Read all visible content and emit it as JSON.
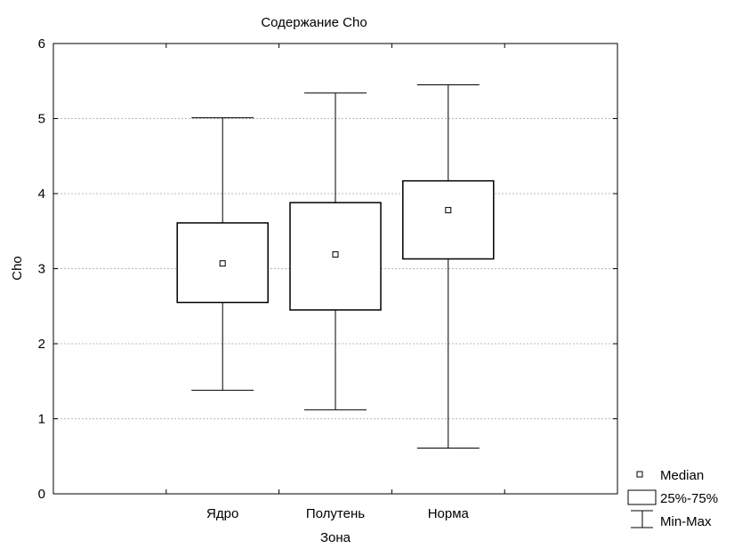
{
  "chart_data": {
    "type": "boxplot",
    "title": "Содержание Cho",
    "xlabel": "Зона",
    "ylabel": "Cho",
    "ylim": [
      0,
      6
    ],
    "y_ticks": [
      "0",
      "1",
      "2",
      "3",
      "4",
      "5",
      "6"
    ],
    "grid": "horizontal-dotted",
    "legend_position": "bottom-right",
    "categories": [
      "Ядро",
      "Полутень",
      "Норма"
    ],
    "series": [
      {
        "category": "Ядро",
        "min": 1.38,
        "q1": 2.55,
        "median": 3.07,
        "q3": 3.61,
        "max": 5.01
      },
      {
        "category": "Полутень",
        "min": 1.12,
        "q1": 2.45,
        "median": 3.19,
        "q3": 3.88,
        "max": 5.34
      },
      {
        "category": "Норма",
        "min": 0.61,
        "q1": 3.13,
        "median": 3.78,
        "q3": 4.17,
        "max": 5.45
      }
    ],
    "legend": [
      "Median",
      "25%-75%",
      "Min-Max"
    ]
  }
}
